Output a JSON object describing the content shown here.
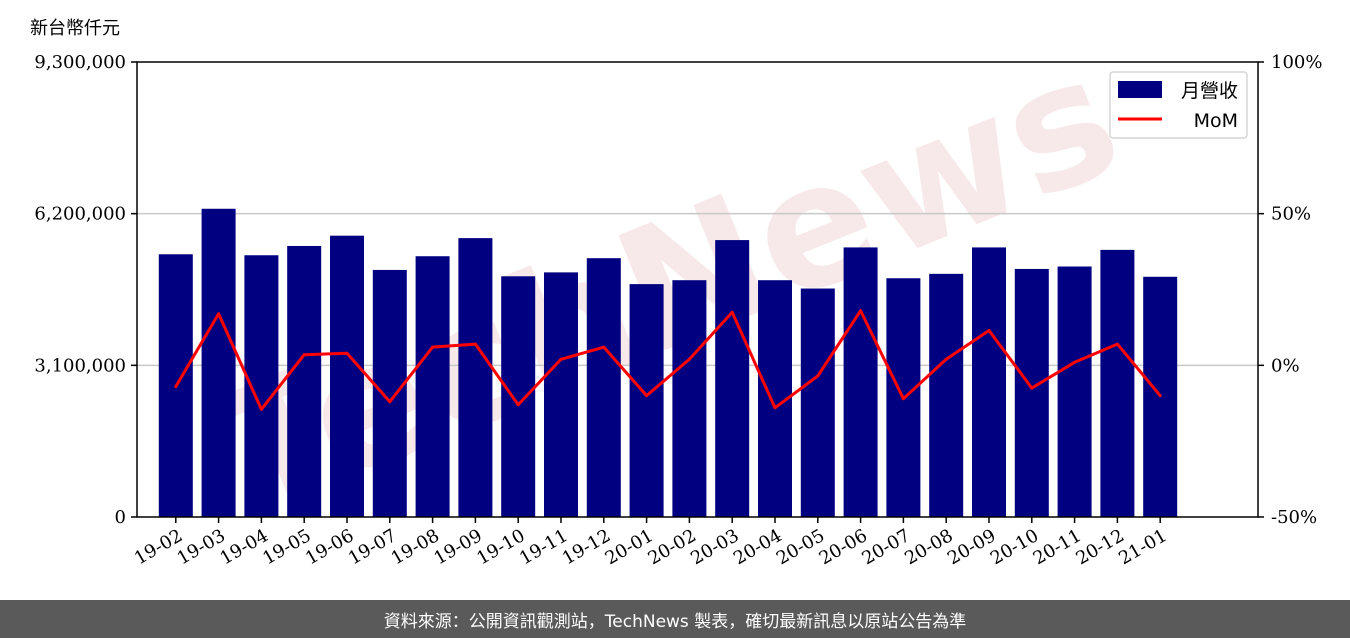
{
  "chart_data": {
    "type": "bar",
    "unit_label": "新台幣仟元",
    "categories": [
      "19-02",
      "19-03",
      "19-04",
      "19-05",
      "19-06",
      "19-07",
      "19-08",
      "19-09",
      "19-10",
      "19-11",
      "19-12",
      "20-01",
      "20-02",
      "20-03",
      "20-04",
      "20-05",
      "20-06",
      "20-07",
      "20-08",
      "20-09",
      "20-10",
      "20-11",
      "20-12",
      "21-01"
    ],
    "series": [
      {
        "name": "月營收",
        "type": "bar",
        "axis": "left",
        "color": "#000080",
        "values": [
          5370000,
          6300000,
          5350000,
          5540000,
          5750000,
          5050000,
          5330000,
          5700000,
          4920000,
          5000000,
          5290000,
          4760000,
          4840000,
          5660000,
          4840000,
          4670000,
          5510000,
          4880000,
          4970000,
          5510000,
          5070000,
          5120000,
          5460000,
          4910000
        ]
      },
      {
        "name": "MoM",
        "type": "line",
        "axis": "right",
        "color": "#ff0000",
        "values": [
          -7,
          17,
          -14.5,
          3.5,
          4,
          -12,
          6,
          7,
          -13,
          2,
          6,
          -10,
          2,
          17.5,
          -14,
          -3.5,
          18,
          -11,
          2,
          11.5,
          -7.5,
          1,
          7,
          -10
        ]
      }
    ],
    "y_left": {
      "ylim": [
        0,
        9300000
      ],
      "ticks": [
        0,
        3100000,
        6200000,
        9300000
      ],
      "tick_labels": [
        "0",
        "3,100,000",
        "6,200,000",
        "9,300,000"
      ]
    },
    "y_right": {
      "ylim": [
        -50,
        100
      ],
      "ticks": [
        -50,
        0,
        50,
        100
      ],
      "tick_labels": [
        "-50%",
        "0%",
        "50%",
        "100%"
      ]
    },
    "grid": "horizontal",
    "legend": "top-right",
    "watermark": "TechNews"
  },
  "footer": {
    "source_text": "資料來源：公開資訊觀測站，TechNews 製表，確切最新訊息以原站公告為準"
  }
}
